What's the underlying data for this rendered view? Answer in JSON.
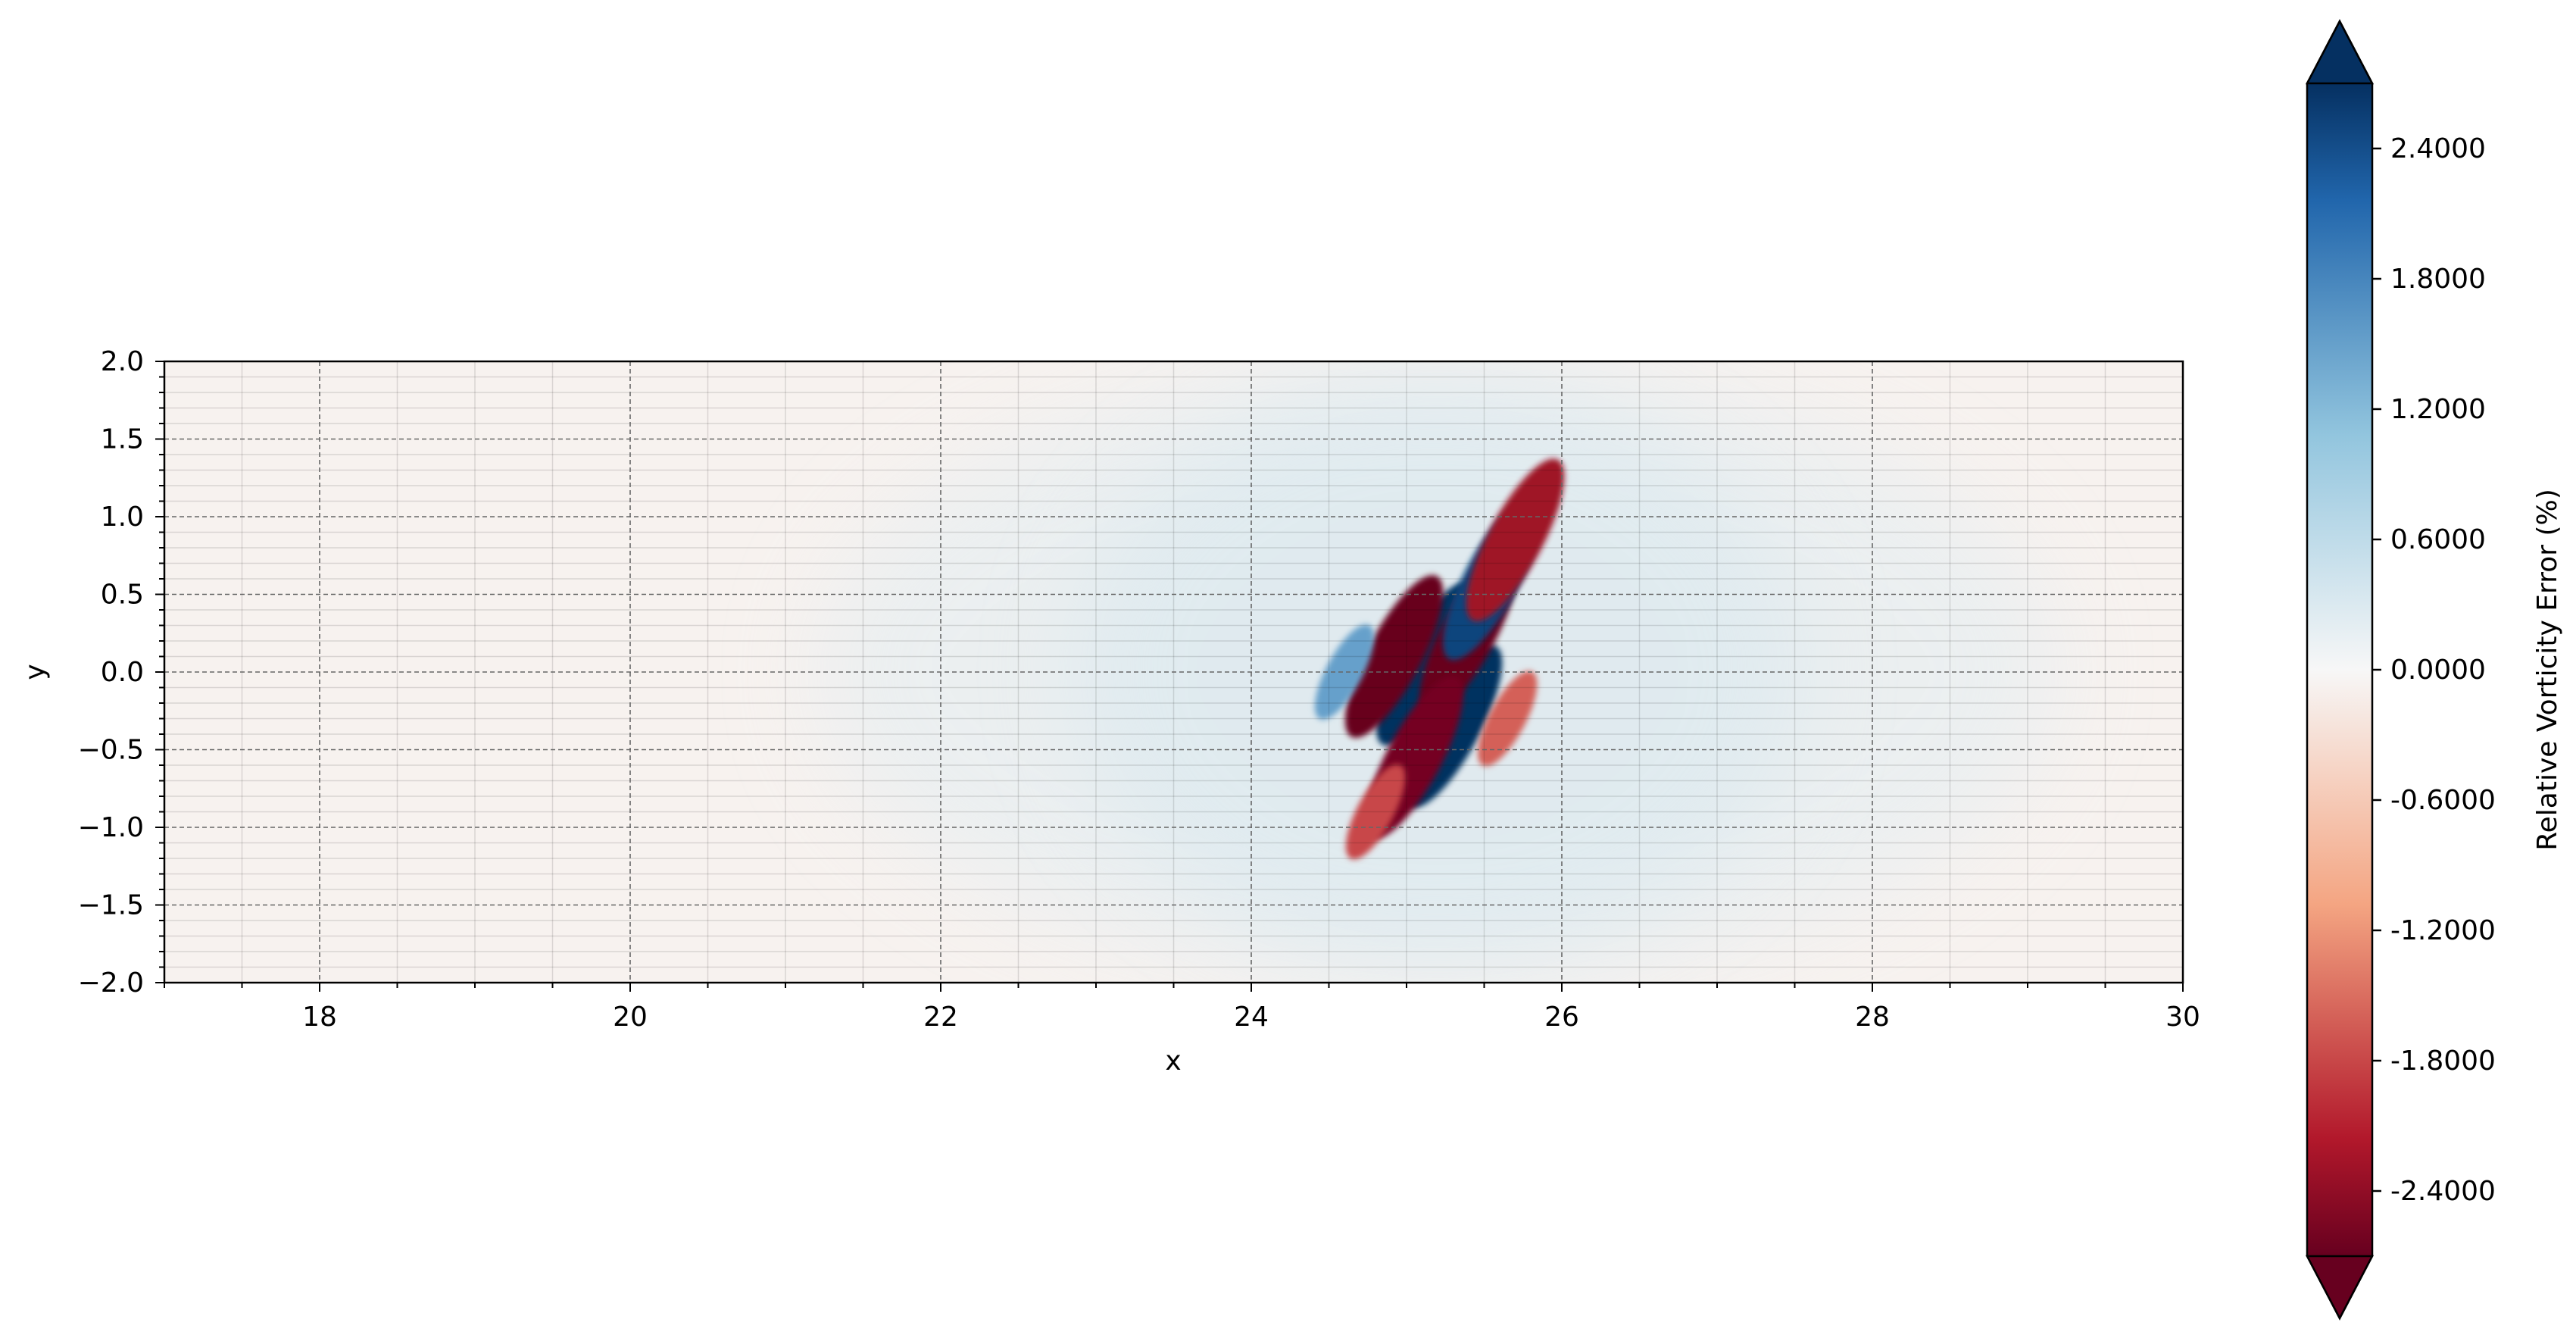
{
  "chart_data": {
    "type": "heatmap",
    "title": "",
    "xlabel": "x",
    "ylabel": "y",
    "xlim": [
      17,
      30
    ],
    "ylim": [
      -2.0,
      2.0
    ],
    "x_ticks": [
      18,
      20,
      22,
      24,
      26,
      28,
      30
    ],
    "x_tick_labels": [
      "18",
      "20",
      "22",
      "24",
      "26",
      "28",
      "30"
    ],
    "y_ticks": [
      2.0,
      1.5,
      1.0,
      0.5,
      0.0,
      -0.5,
      -1.0,
      -1.5,
      -2.0
    ],
    "y_tick_labels": [
      "2.0",
      "1.5",
      "1.0",
      "0.5",
      "0.0",
      "−0.5",
      "−1.0",
      "−1.5",
      "−2.0"
    ],
    "grid": true,
    "colorbar": {
      "label": "Relative Vorticity Error (%)",
      "colormap": "RdBu",
      "range": [
        -2.7,
        2.7
      ],
      "extend": "both",
      "ticks": [
        2.4,
        1.8,
        1.2,
        0.6,
        0.0,
        -0.6,
        -1.2,
        -1.8,
        -2.4
      ],
      "tick_labels": [
        "2.4000",
        "1.8000",
        "1.2000",
        "0.6000",
        "0.0000",
        "-0.6000",
        "-1.2000",
        "-1.8000",
        "-2.4000"
      ],
      "colors": {
        "max": "#053061",
        "high": "#2166ac",
        "mid_high": "#92c5de",
        "zero": "#f7f7f7",
        "mid_low": "#f4a582",
        "low": "#b2182b",
        "min": "#67001f"
      }
    },
    "structures": [
      {
        "x": 25.12,
        "y": 0.05,
        "value": 2.7
      },
      {
        "x": 25.3,
        "y": -0.35,
        "value": 2.7
      },
      {
        "x": 24.92,
        "y": 0.1,
        "value": -2.7
      },
      {
        "x": 25.4,
        "y": 0.25,
        "value": -2.7
      },
      {
        "x": 25.55,
        "y": 0.6,
        "value": 2.5
      },
      {
        "x": 25.05,
        "y": -0.55,
        "value": -2.6
      },
      {
        "x": 25.7,
        "y": 0.85,
        "value": -2.3
      },
      {
        "x": 24.8,
        "y": -0.9,
        "value": -1.8
      },
      {
        "x": 24.6,
        "y": 0.0,
        "value": 1.5
      },
      {
        "x": 25.65,
        "y": -0.3,
        "value": -1.6
      }
    ]
  }
}
